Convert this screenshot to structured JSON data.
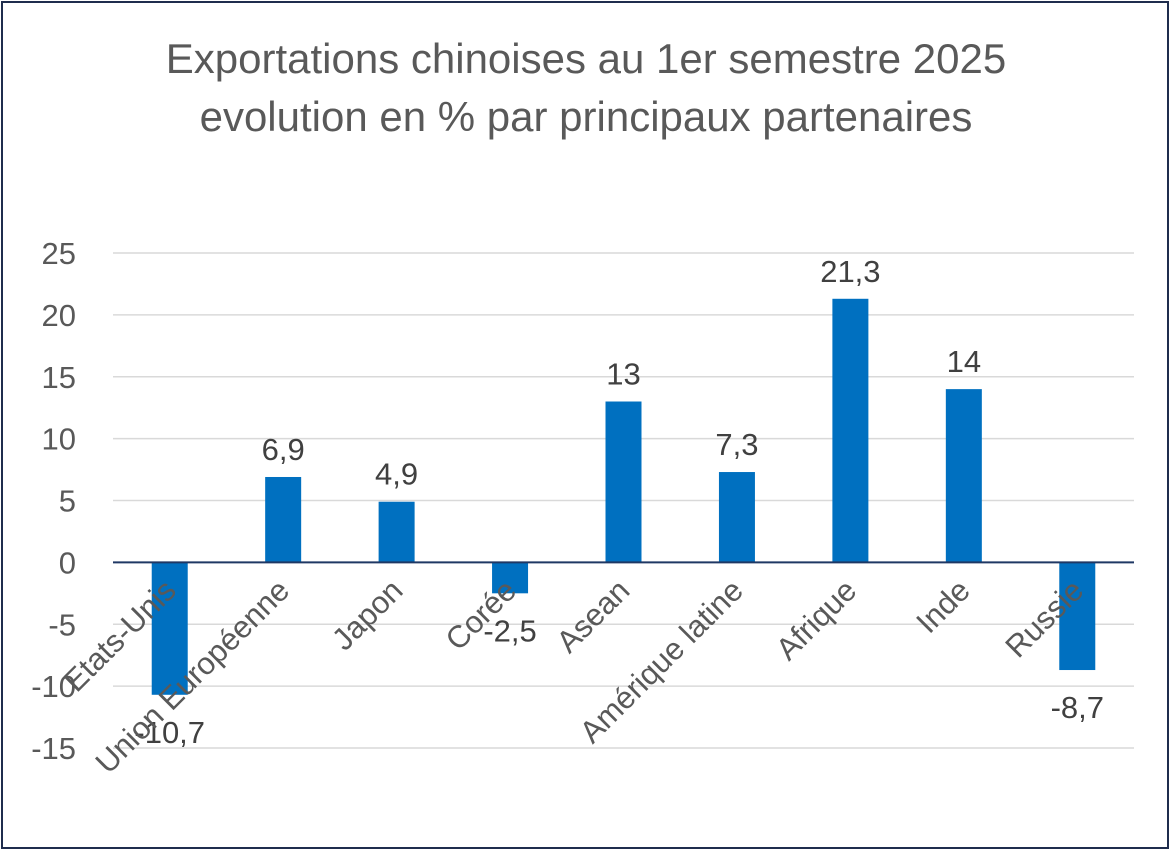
{
  "chart_data": {
    "type": "bar",
    "title": "Exportations chinoises au 1er semestre 2025 evolution en % par principaux partenaires",
    "xlabel": "",
    "ylabel": "",
    "categories": [
      "Etats-Unis",
      "Union Européenne",
      "Japon",
      "Corée",
      "Asean",
      "Amérique latine",
      "Afrique",
      "Inde",
      "Russie"
    ],
    "values": [
      -10.7,
      6.9,
      4.9,
      -2.5,
      13,
      7.3,
      21.3,
      14,
      -8.7
    ],
    "value_labels": [
      "-10,7",
      "6,9",
      "4,9",
      "-2,5",
      "13",
      "7,3",
      "21,3",
      "14",
      "-8,7"
    ],
    "ylim": [
      -15,
      25
    ],
    "yticks": [
      25,
      20,
      15,
      10,
      5,
      0,
      -5,
      -10,
      -15
    ],
    "grid": true,
    "legend": "none",
    "colors": {
      "bar": "#0070c0",
      "grid": "#d9d9d9",
      "axis": "#1f3864",
      "frame": "#1f2d4d",
      "text": "#595959"
    }
  }
}
